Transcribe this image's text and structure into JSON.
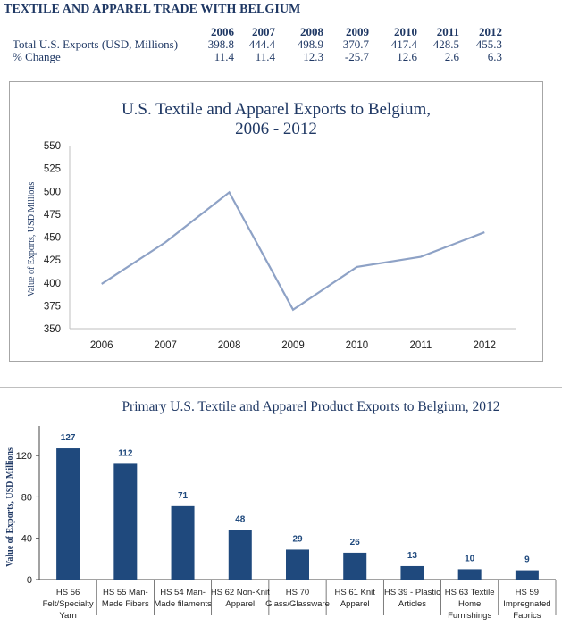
{
  "page_title": "TEXTILE AND APPAREL TRADE WITH BELGIUM",
  "table": {
    "years": [
      "2006",
      "2007",
      "2008",
      "2009",
      "2010",
      "2011",
      "2012"
    ],
    "rows": [
      {
        "label": "Total U.S. Exports (USD, Millions)",
        "values": [
          "398.8",
          "444.4",
          "498.9",
          "370.7",
          "417.4",
          "428.5",
          "455.3"
        ]
      },
      {
        "label": "% Change",
        "values": [
          "11.4",
          "11.4",
          "12.3",
          "-25.7",
          "12.6",
          "2.6",
          "6.3"
        ]
      }
    ]
  },
  "chart_data": [
    {
      "type": "line",
      "title_line1": "U.S. Textile and Apparel Exports to Belgium,",
      "title_line2": "2006 - 2012",
      "ylabel": "Value of Exports, USD Millions",
      "xlabel": "",
      "categories": [
        "2006",
        "2007",
        "2008",
        "2009",
        "2010",
        "2011",
        "2012"
      ],
      "values": [
        398.8,
        444.4,
        498.9,
        370.7,
        417.4,
        428.5,
        455.3
      ],
      "ylim": [
        350,
        550
      ],
      "yticks": [
        "350",
        "375",
        "400",
        "425",
        "450",
        "475",
        "500",
        "525",
        "550"
      ],
      "color": "#8ea2c6",
      "grid": false
    },
    {
      "type": "bar",
      "title": "Primary U.S. Textile and Apparel Product Exports to Belgium, 2012",
      "ylabel": "Value of Exports, USD Millions",
      "xlabel": "",
      "categories": [
        [
          "HS 56",
          "Felt/Specialty",
          "Yarn"
        ],
        [
          "HS 55 Man-",
          "Made Fibers"
        ],
        [
          "HS 54 Man-",
          "Made filaments"
        ],
        [
          "HS 62 Non-Knit",
          "Apparel"
        ],
        [
          "HS 70",
          "Glass/Glassware"
        ],
        [
          "HS 61 Knit",
          "Apparel"
        ],
        [
          "HS 39 - Plastic",
          "Articles"
        ],
        [
          "HS 63 Textile",
          "Home",
          "Furnishings"
        ],
        [
          "HS 59",
          "Impregnated",
          "Fabrics"
        ]
      ],
      "values": [
        127,
        112,
        71,
        48,
        29,
        26,
        13,
        10,
        9
      ],
      "value_labels": [
        "127",
        "112",
        "71",
        "48",
        "29",
        "26",
        "13",
        "10",
        "9"
      ],
      "ylim": [
        0,
        140
      ],
      "yticks": [
        "0",
        "40",
        "80",
        "120"
      ],
      "color": "#1f497d",
      "grid": false
    }
  ]
}
